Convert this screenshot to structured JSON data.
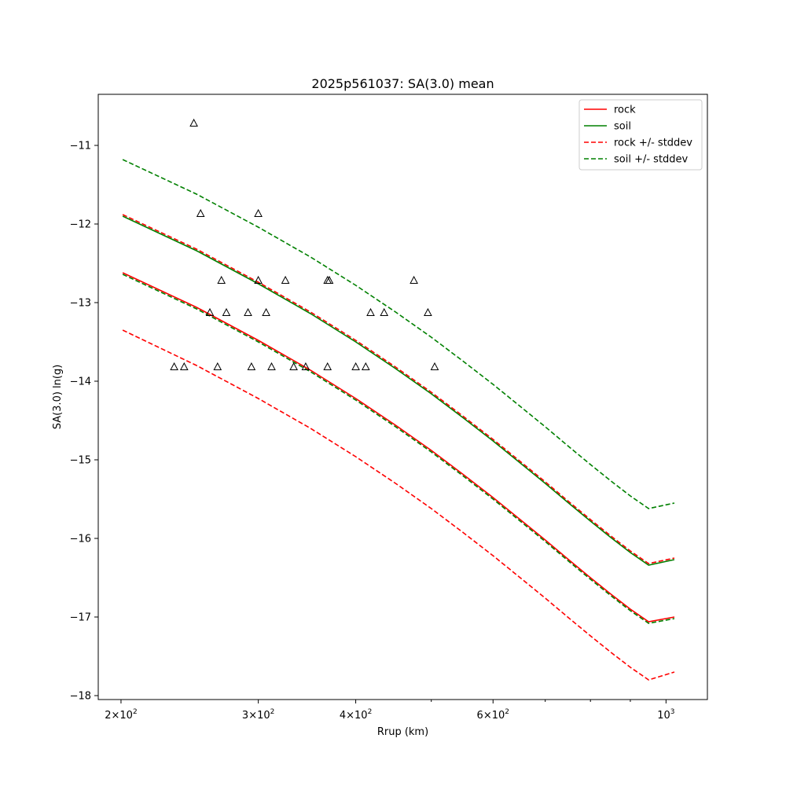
{
  "chart_data": {
    "type": "line",
    "title": "2025p561037: SA(3.0) mean",
    "xlabel": "Rrup (km)",
    "ylabel": "SA(3.0) ln(g)",
    "xscale": "log",
    "xlim": [
      187,
      1130
    ],
    "ylim": [
      -18.05,
      -10.35
    ],
    "grid": false,
    "legend_position": "top-right",
    "x_ticks": [
      {
        "value": 200,
        "mantissa": "2",
        "exp": "2"
      },
      {
        "value": 300,
        "mantissa": "3",
        "exp": "2"
      },
      {
        "value": 400,
        "mantissa": "4",
        "exp": "2"
      },
      {
        "value": 600,
        "mantissa": "6",
        "exp": "2"
      },
      {
        "value": 1000,
        "mantissa": "",
        "exp": "3"
      }
    ],
    "x_minor_ticks": [
      500,
      700,
      800,
      900
    ],
    "y_ticks": [
      {
        "value": -11,
        "label": "−11"
      },
      {
        "value": -12,
        "label": "−12"
      },
      {
        "value": -13,
        "label": "−13"
      },
      {
        "value": -14,
        "label": "−14"
      },
      {
        "value": -15,
        "label": "−15"
      },
      {
        "value": -16,
        "label": "−16"
      },
      {
        "value": -17,
        "label": "−17"
      },
      {
        "value": -18,
        "label": "−18"
      }
    ],
    "x": [
      201,
      250,
      300,
      350,
      400,
      450,
      500,
      550,
      600,
      650,
      700,
      750,
      800,
      850,
      900,
      950,
      1025
    ],
    "series": [
      {
        "name": "rock",
        "color": "#ff0000",
        "dash": false,
        "values": [
          -12.62,
          -13.06,
          -13.48,
          -13.86,
          -14.22,
          -14.56,
          -14.88,
          -15.19,
          -15.48,
          -15.76,
          -16.02,
          -16.27,
          -16.5,
          -16.71,
          -16.9,
          -17.06,
          -17.0
        ]
      },
      {
        "name": "soil",
        "color": "#008000",
        "dash": false,
        "values": [
          -11.9,
          -12.34,
          -12.76,
          -13.14,
          -13.5,
          -13.84,
          -14.16,
          -14.47,
          -14.76,
          -15.04,
          -15.3,
          -15.55,
          -15.78,
          -15.99,
          -16.18,
          -16.34,
          -16.27
        ]
      },
      {
        "name": "rock +/- stddev",
        "color": "#ff0000",
        "dash": true,
        "values": [
          -11.88,
          -12.32,
          -12.74,
          -13.12,
          -13.48,
          -13.82,
          -14.14,
          -14.45,
          -14.74,
          -15.02,
          -15.28,
          -15.53,
          -15.76,
          -15.97,
          -16.16,
          -16.32,
          -16.25
        ]
      },
      {
        "name": "rock +/- stddev lower",
        "color": "#ff0000",
        "dash": true,
        "values": [
          -13.35,
          -13.8,
          -14.22,
          -14.6,
          -14.96,
          -15.3,
          -15.62,
          -15.93,
          -16.22,
          -16.5,
          -16.76,
          -17.01,
          -17.24,
          -17.45,
          -17.64,
          -17.8,
          -17.7
        ]
      },
      {
        "name": "soil +/- stddev",
        "color": "#008000",
        "dash": true,
        "values": [
          -11.18,
          -11.62,
          -12.04,
          -12.42,
          -12.78,
          -13.12,
          -13.44,
          -13.75,
          -14.04,
          -14.32,
          -14.58,
          -14.83,
          -15.06,
          -15.27,
          -15.46,
          -15.62,
          -15.55
        ]
      },
      {
        "name": "soil +/- stddev lower",
        "color": "#008000",
        "dash": true,
        "values": [
          -12.64,
          -13.08,
          -13.5,
          -13.88,
          -14.24,
          -14.58,
          -14.9,
          -15.21,
          -15.5,
          -15.78,
          -16.04,
          -16.29,
          -16.52,
          -16.73,
          -16.92,
          -17.08,
          -17.02
        ]
      }
    ],
    "legend": [
      {
        "label": "rock",
        "color": "#ff0000",
        "dash": false
      },
      {
        "label": "soil",
        "color": "#008000",
        "dash": false
      },
      {
        "label": "rock +/- stddev",
        "color": "#ff0000",
        "dash": true
      },
      {
        "label": "soil +/- stddev",
        "color": "#008000",
        "dash": true
      }
    ],
    "observations": [
      {
        "x": 248,
        "y": -10.72
      },
      {
        "x": 253,
        "y": -11.87
      },
      {
        "x": 300,
        "y": -11.87
      },
      {
        "x": 269,
        "y": -12.72
      },
      {
        "x": 300,
        "y": -12.72
      },
      {
        "x": 325,
        "y": -12.72
      },
      {
        "x": 368,
        "y": -12.72
      },
      {
        "x": 370,
        "y": -12.72
      },
      {
        "x": 475,
        "y": -12.72
      },
      {
        "x": 260,
        "y": -13.13
      },
      {
        "x": 273,
        "y": -13.13
      },
      {
        "x": 291,
        "y": -13.13
      },
      {
        "x": 307,
        "y": -13.13
      },
      {
        "x": 418,
        "y": -13.13
      },
      {
        "x": 435,
        "y": -13.13
      },
      {
        "x": 495,
        "y": -13.13
      },
      {
        "x": 234,
        "y": -13.82
      },
      {
        "x": 241,
        "y": -13.82
      },
      {
        "x": 266,
        "y": -13.82
      },
      {
        "x": 294,
        "y": -13.82
      },
      {
        "x": 312,
        "y": -13.82
      },
      {
        "x": 333,
        "y": -13.82
      },
      {
        "x": 345,
        "y": -13.82
      },
      {
        "x": 368,
        "y": -13.82
      },
      {
        "x": 400,
        "y": -13.82
      },
      {
        "x": 412,
        "y": -13.82
      },
      {
        "x": 505,
        "y": -13.82
      }
    ]
  }
}
